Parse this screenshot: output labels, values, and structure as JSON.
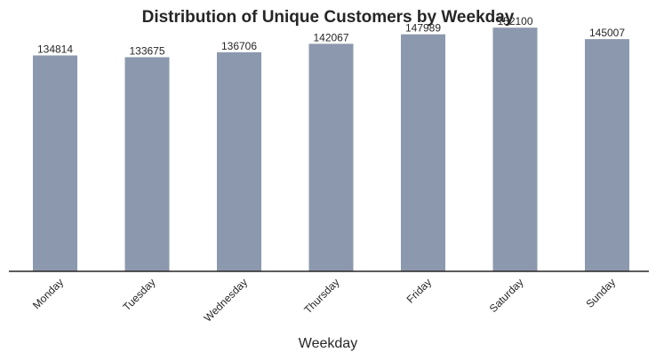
{
  "chart_data": {
    "type": "bar",
    "title": "Distribution of Unique Customers by Weekday",
    "xlabel": "Weekday",
    "ylabel": "",
    "categories": [
      "Monday",
      "Tuesday",
      "Wednesday",
      "Thursday",
      "Friday",
      "Saturday",
      "Sunday"
    ],
    "values": [
      134814,
      133675,
      136706,
      142067,
      147989,
      152100,
      145007
    ],
    "ylim": [
      0,
      155000
    ],
    "grid": false,
    "legend": "none",
    "colors": {
      "bar": "#8c98ad",
      "axis": "#262626",
      "text": "#262626"
    }
  }
}
